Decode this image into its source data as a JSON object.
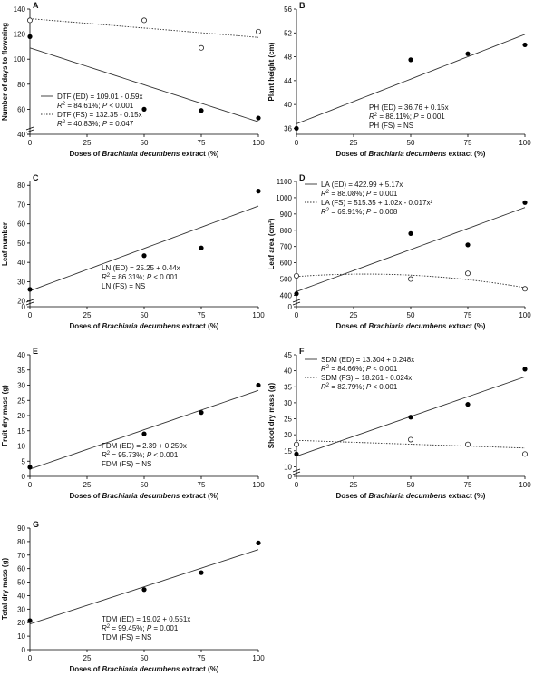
{
  "chart_data": [
    {
      "letter": "A",
      "type": "scatter",
      "xlabel_pre": "Doses of ",
      "xlabel_em": "Brachiaria decumbens",
      "xlabel_post": " extract (%)",
      "ylabel": "Number of days to flowering",
      "xticks": [
        "0",
        "25",
        "50",
        "75",
        "100"
      ],
      "yticks": [
        "0",
        "40",
        "60",
        "80",
        "100",
        "120",
        "140"
      ],
      "ylim": [
        40,
        140
      ],
      "axis_break": true,
      "series": [
        {
          "name": "ED",
          "marker": "filled",
          "x": [
            0,
            50,
            75,
            100
          ],
          "y": [
            118,
            60,
            59,
            53
          ],
          "fit": {
            "type": "linear",
            "a": 109.01,
            "b": -0.59
          }
        },
        {
          "name": "FS",
          "marker": "open",
          "x": [
            0,
            50,
            75,
            100
          ],
          "y": [
            131,
            131,
            109,
            122
          ],
          "fit": {
            "type": "linear",
            "a": 132.35,
            "b": -0.15
          }
        }
      ],
      "legend": [
        {
          "line": "solid",
          "eq": "DTF (ED) = 109.01 - 0.59x",
          "r2": " = 84.61%; ",
          "p": " < 0.001"
        },
        {
          "line": "dotted",
          "eq": "DTF (FS) = 132.35 - 0.15x",
          "r2": " = 40.83%; ",
          "p": " = 0.047"
        }
      ]
    },
    {
      "letter": "B",
      "type": "scatter",
      "xlabel_pre": "Doses of ",
      "xlabel_em": "Brachiaria decumbens",
      "xlabel_post": " extract (%)",
      "ylabel": "Plant height (cm)",
      "xticks": [
        "0",
        "25",
        "50",
        "75",
        "100"
      ],
      "yticks": [
        "36",
        "40",
        "44",
        "48",
        "52",
        "56"
      ],
      "ylim": [
        35,
        56
      ],
      "axis_break": false,
      "series": [
        {
          "name": "ED",
          "marker": "filled",
          "x": [
            0,
            50,
            75,
            100
          ],
          "y": [
            36,
            47.5,
            48.5,
            50
          ],
          "fit": {
            "type": "linear",
            "a": 36.76,
            "b": 0.15
          }
        }
      ],
      "legend": [
        {
          "line": "none",
          "eq": "PH (ED) = 36.76 + 0.15x",
          "r2": " = 88.11%; ",
          "p": " = 0.001"
        },
        {
          "line": "none",
          "eq": "PH (FS) = NS"
        }
      ]
    },
    {
      "letter": "C",
      "type": "scatter",
      "xlabel_pre": "Doses of ",
      "xlabel_em": "Brachiaria decumbens",
      "xlabel_post": " extract (%)",
      "ylabel": "Leaf number",
      "xticks": [
        "0",
        "25",
        "50",
        "75",
        "100"
      ],
      "yticks": [
        "0",
        "20",
        "30",
        "40",
        "50",
        "60",
        "70",
        "80"
      ],
      "ylim": [
        17,
        82
      ],
      "axis_break": true,
      "series": [
        {
          "name": "ED",
          "marker": "filled",
          "x": [
            0,
            50,
            75,
            100
          ],
          "y": [
            26,
            43.5,
            47.5,
            77
          ],
          "fit": {
            "type": "linear",
            "a": 25.25,
            "b": 0.44
          }
        }
      ],
      "legend": [
        {
          "line": "none",
          "eq": "LN (ED) = 25.25 + 0.44x",
          "r2": " = 86.31%; ",
          "p": " < 0.001"
        },
        {
          "line": "none",
          "eq": "LN (FS) = NS"
        }
      ]
    },
    {
      "letter": "D",
      "type": "scatter",
      "xlabel_pre": "Doses of ",
      "xlabel_em": "Brachiaria decumbens",
      "xlabel_post": " extract (%)",
      "ylabel": "Leaf area (cm²)",
      "xticks": [
        "0",
        "25",
        "50",
        "75",
        "100"
      ],
      "yticks": [
        "0",
        "400",
        "500",
        "600",
        "700",
        "800",
        "900",
        "1000",
        "1100"
      ],
      "ylim": [
        330,
        1100
      ],
      "axis_break": true,
      "series": [
        {
          "name": "ED",
          "marker": "filled",
          "x": [
            0,
            50,
            75,
            100
          ],
          "y": [
            410,
            780,
            710,
            970
          ],
          "fit": {
            "type": "linear",
            "a": 422.99,
            "b": 5.17
          }
        },
        {
          "name": "FS",
          "marker": "open",
          "x": [
            0,
            50,
            75,
            100
          ],
          "y": [
            520,
            500,
            535,
            440
          ],
          "fit": {
            "type": "quadratic",
            "a": 515.35,
            "b": 1.02,
            "c": -0.017
          }
        }
      ],
      "legend": [
        {
          "line": "solid",
          "eq": "LA (ED) = 422.99 + 5.17x",
          "r2": " = 88.08%; ",
          "p": " = 0.001"
        },
        {
          "line": "dotted",
          "eq": "LA (FS) = 515.35 + 1.02x - 0.017x²",
          "r2": " = 69.91%; ",
          "p": " = 0.008"
        }
      ]
    },
    {
      "letter": "E",
      "type": "scatter",
      "xlabel_pre": "Doses of ",
      "xlabel_em": "Brachiaria decumbens",
      "xlabel_post": " extract (%)",
      "ylabel": "Fruit dry mass (g)",
      "xticks": [
        "0",
        "25",
        "50",
        "75",
        "100"
      ],
      "yticks": [
        "0",
        "5",
        "10",
        "15",
        "20",
        "25",
        "30",
        "35",
        "40"
      ],
      "ylim": [
        0,
        40
      ],
      "axis_break": false,
      "series": [
        {
          "name": "ED",
          "marker": "filled",
          "x": [
            0,
            50,
            75,
            100
          ],
          "y": [
            3,
            14,
            21,
            30
          ],
          "fit": {
            "type": "linear",
            "a": 2.39,
            "b": 0.259
          }
        }
      ],
      "legend": [
        {
          "line": "none",
          "eq": "FDM (ED) = 2.39 + 0.259x",
          "r2": " = 95.73%; ",
          "p": " < 0.001"
        },
        {
          "line": "none",
          "eq": "FDM (FS) = NS"
        }
      ]
    },
    {
      "letter": "F",
      "type": "scatter",
      "xlabel_pre": "Doses of ",
      "xlabel_em": "Brachiaria decumbens",
      "xlabel_post": " extract (%)",
      "ylabel": "Shoot dry mass (g)",
      "xticks": [
        "0",
        "25",
        "50",
        "75",
        "100"
      ],
      "yticks": [
        "0",
        "10",
        "15",
        "20",
        "25",
        "30",
        "35",
        "40",
        "45"
      ],
      "ylim": [
        7,
        45
      ],
      "axis_break": true,
      "series": [
        {
          "name": "ED",
          "marker": "filled",
          "x": [
            0,
            50,
            75,
            100
          ],
          "y": [
            14,
            25.5,
            29.5,
            40.5
          ],
          "fit": {
            "type": "linear",
            "a": 13.304,
            "b": 0.248
          }
        },
        {
          "name": "FS",
          "marker": "open",
          "x": [
            0,
            50,
            75,
            100
          ],
          "y": [
            17,
            18.5,
            17,
            14
          ],
          "fit": {
            "type": "linear",
            "a": 18.261,
            "b": -0.024
          }
        }
      ],
      "legend": [
        {
          "line": "solid",
          "eq": "SDM (ED) = 13.304 + 0.248x",
          "r2": " = 84.66%; ",
          "p": " < 0.001"
        },
        {
          "line": "dotted",
          "eq": "SDM (FS) = 18.261 - 0.024x",
          "r2": " = 82.79%; ",
          "p": " < 0.001"
        }
      ]
    },
    {
      "letter": "G",
      "type": "scatter",
      "xlabel_pre": "Doses of ",
      "xlabel_em": "Brachiaria decumbens",
      "xlabel_post": " extract (%)",
      "ylabel": "Total dry mass (g)",
      "xticks": [
        "0",
        "25",
        "50",
        "75",
        "100"
      ],
      "yticks": [
        "0",
        "10",
        "20",
        "30",
        "40",
        "50",
        "60",
        "70",
        "80",
        "90"
      ],
      "ylim": [
        0,
        90
      ],
      "axis_break": false,
      "series": [
        {
          "name": "ED",
          "marker": "filled",
          "x": [
            0,
            50,
            75,
            100
          ],
          "y": [
            21.5,
            44.5,
            57,
            79
          ],
          "fit": {
            "type": "linear",
            "a": 19.02,
            "b": 0.551
          }
        }
      ],
      "legend": [
        {
          "line": "none",
          "eq": "TDM (ED) = 19.02 + 0.551x",
          "r2": " = 99.45%; ",
          "p": " = 0.001"
        },
        {
          "line": "none",
          "eq": "TDM (FS) = NS"
        }
      ]
    }
  ]
}
